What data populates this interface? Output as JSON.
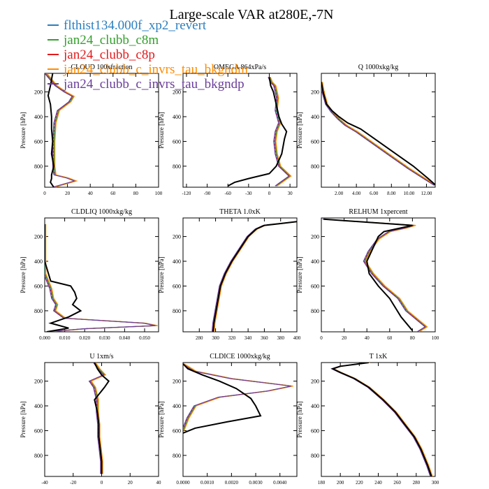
{
  "title": "Large-scale VAR at280E,-7N",
  "legend": {
    "placement": "top-left",
    "entries": [
      {
        "name": "flthist134.000f_xp2_revert",
        "color": "#2b7fbf"
      },
      {
        "name": "jan24_clubb_c8m",
        "color": "#33a02c"
      },
      {
        "name": "jan24_clubb_c8p",
        "color": "#e31a1c"
      },
      {
        "name": "jan24_clubb_c_invrs_tau_bkgndm",
        "color": "#ff8c00"
      },
      {
        "name": "jan24_clubb_c_invrs_tau_bkgndp",
        "color": "#6a3d9a"
      }
    ]
  },
  "reference_color": "#000000",
  "chart_data": [
    {
      "type": "line",
      "title": "CLOUD  100xfraction",
      "ylabel": "Pressure [hPa]",
      "xlim": [
        0,
        100
      ],
      "ylim": [
        970,
        50
      ],
      "y_inverted": true,
      "xticks": [
        "0",
        "20",
        "40",
        "60",
        "80",
        "100"
      ],
      "xtick_values": [
        0,
        20,
        40,
        60,
        80,
        100
      ],
      "yticks": [
        "200",
        "400",
        "600",
        "800"
      ],
      "ytick_values": [
        200,
        400,
        600,
        800
      ],
      "reference": {
        "x": [
          7,
          5,
          3,
          5,
          6,
          6,
          7,
          6,
          8,
          6,
          6,
          5,
          8
        ],
        "y": [
          50,
          150,
          230,
          300,
          400,
          500,
          600,
          700,
          800,
          870,
          900,
          930,
          970
        ]
      },
      "models": {
        "x": [
          1,
          10,
          18,
          25,
          22,
          12,
          9,
          8,
          8,
          9,
          20,
          27,
          8
        ],
        "y": [
          50,
          150,
          200,
          235,
          280,
          350,
          450,
          600,
          800,
          870,
          895,
          920,
          970
        ]
      }
    },
    {
      "type": "line",
      "title": "OMEGA  864xPa/s",
      "ylabel": "Pressure [hPa]",
      "xlim": [
        -125,
        40
      ],
      "ylim": [
        970,
        50
      ],
      "y_inverted": true,
      "xticks": [
        "-120",
        "-90",
        "-60",
        "-30",
        "0",
        "30"
      ],
      "xtick_values": [
        -120,
        -90,
        -60,
        -30,
        0,
        30
      ],
      "yticks": [
        "200",
        "400",
        "600",
        "800"
      ],
      "ytick_values": [
        200,
        400,
        600,
        800
      ],
      "reference": {
        "x": [
          0,
          2,
          6,
          10,
          14,
          18,
          25,
          22,
          18,
          10,
          0,
          -30,
          -50,
          -60
        ],
        "y": [
          80,
          150,
          200,
          300,
          400,
          460,
          520,
          580,
          700,
          800,
          860,
          900,
          930,
          960
        ]
      },
      "models": {
        "x": [
          0,
          3,
          8,
          12,
          10,
          15,
          10,
          8,
          10,
          15,
          30,
          20,
          10
        ],
        "y": [
          80,
          120,
          150,
          250,
          350,
          450,
          520,
          600,
          700,
          800,
          880,
          920,
          960
        ]
      }
    },
    {
      "type": "line",
      "title": "Q  1000xkg/kg",
      "ylabel": "Pressure [hPa]",
      "xlim": [
        0,
        13
      ],
      "ylim": [
        970,
        50
      ],
      "y_inverted": true,
      "xticks": [
        "2.00",
        "4.00",
        "6.00",
        "8.00",
        "10.00",
        "12.00"
      ],
      "xtick_values": [
        2,
        4,
        6,
        8,
        10,
        12
      ],
      "yticks": [
        "200",
        "400",
        "600",
        "800"
      ],
      "ytick_values": [
        200,
        400,
        600,
        800
      ],
      "reference": {
        "x": [
          0,
          0.2,
          0.6,
          1.2,
          2.0,
          3.0,
          4.5,
          6.5,
          8.5,
          10.5,
          12.2,
          13.0
        ],
        "y": [
          120,
          200,
          300,
          350,
          400,
          450,
          500,
          600,
          700,
          800,
          900,
          950
        ]
      },
      "models": {
        "x": [
          0,
          0.2,
          0.6,
          1.2,
          2.0,
          2.8,
          4.0,
          6.0,
          8.0,
          10.0,
          12.0,
          13.0
        ],
        "y": [
          120,
          200,
          300,
          360,
          420,
          470,
          520,
          620,
          720,
          820,
          910,
          955
        ]
      }
    },
    {
      "type": "line",
      "title": "CLDLIQ  1000xkg/kg",
      "ylabel": "Pressure [hPa]",
      "xlim": [
        0,
        0.057
      ],
      "ylim": [
        970,
        50
      ],
      "y_inverted": true,
      "xticks": [
        "0.000",
        "0.010",
        "0.020",
        "0.030",
        "0.040",
        "0.050"
      ],
      "xtick_values": [
        0,
        0.01,
        0.02,
        0.03,
        0.04,
        0.05
      ],
      "yticks": [
        "200",
        "400",
        "600",
        "800"
      ],
      "ytick_values": [
        200,
        400,
        600,
        800
      ],
      "reference": {
        "x": [
          0,
          0,
          0.003,
          0.013,
          0.015,
          0.016,
          0.014,
          0.018,
          0.012,
          0.003,
          0.012,
          0.001
        ],
        "y": [
          100,
          400,
          560,
          600,
          650,
          700,
          750,
          800,
          850,
          900,
          940,
          970
        ]
      },
      "models": {
        "x": [
          0,
          0,
          0.002,
          0.003,
          0.004,
          0.006,
          0.005,
          0.01,
          0.05,
          0.056,
          0.02,
          0.002
        ],
        "y": [
          100,
          500,
          580,
          620,
          700,
          750,
          800,
          860,
          900,
          920,
          945,
          970
        ]
      }
    },
    {
      "type": "line",
      "title": "THETA  1.0xK",
      "ylabel": "Pressure [hPa]",
      "xlim": [
        260,
        400
      ],
      "ylim": [
        970,
        50
      ],
      "y_inverted": true,
      "xticks": [
        "280",
        "300",
        "320",
        "340",
        "360",
        "380",
        "400"
      ],
      "xtick_values": [
        280,
        300,
        320,
        340,
        360,
        380,
        400
      ],
      "yticks": [
        "200",
        "400",
        "600",
        "800"
      ],
      "ytick_values": [
        200,
        400,
        600,
        800
      ],
      "reference": {
        "x": [
          400,
          380,
          360,
          350,
          340,
          330,
          320,
          312,
          306,
          302,
          298,
          297
        ],
        "y": [
          80,
          95,
          110,
          140,
          200,
          300,
          400,
          500,
          600,
          750,
          900,
          970
        ]
      },
      "models": {
        "x": [
          400,
          380,
          360,
          350,
          340,
          330,
          320,
          312,
          306,
          302,
          298,
          297
        ],
        "y": [
          80,
          95,
          110,
          140,
          200,
          300,
          400,
          500,
          600,
          750,
          900,
          970
        ]
      }
    },
    {
      "type": "line",
      "title": "RELHUM  1xpercent",
      "ylabel": "Pressure [hPa]",
      "xlim": [
        0,
        100
      ],
      "ylim": [
        970,
        50
      ],
      "y_inverted": true,
      "xticks": [
        "0",
        "20",
        "40",
        "60",
        "80",
        "100"
      ],
      "xtick_values": [
        0,
        20,
        40,
        60,
        80,
        100
      ],
      "yticks": [
        "200",
        "400",
        "600",
        "800"
      ],
      "ytick_values": [
        200,
        400,
        600,
        800
      ],
      "reference": {
        "x": [
          2,
          80,
          70,
          55,
          50,
          45,
          40,
          42,
          50,
          60,
          70,
          80
        ],
        "y": [
          60,
          110,
          130,
          160,
          200,
          300,
          400,
          500,
          600,
          700,
          850,
          960
        ]
      },
      "models": {
        "x": [
          2,
          82,
          75,
          60,
          50,
          42,
          38,
          45,
          55,
          68,
          75,
          92,
          85
        ],
        "y": [
          60,
          110,
          130,
          160,
          220,
          320,
          400,
          500,
          600,
          700,
          800,
          930,
          970
        ]
      }
    },
    {
      "type": "line",
      "title": "U  1xm/s",
      "ylabel": "Pressure [hPa]",
      "xlim": [
        -40,
        40
      ],
      "ylim": [
        970,
        50
      ],
      "y_inverted": true,
      "xticks": [
        "-40",
        "-20",
        "0",
        "20",
        "40"
      ],
      "xtick_values": [
        -40,
        -20,
        0,
        20,
        40
      ],
      "yticks": [
        "200",
        "400",
        "600",
        "800"
      ],
      "ytick_values": [
        200,
        400,
        600,
        800
      ],
      "reference": {
        "x": [
          -5,
          -3,
          0,
          5,
          2,
          -5,
          -3,
          -2,
          -2,
          -1,
          0,
          0
        ],
        "y": [
          50,
          100,
          150,
          200,
          250,
          350,
          450,
          550,
          650,
          750,
          850,
          950
        ]
      },
      "models": {
        "x": [
          -5,
          -2,
          2,
          -8,
          -5,
          -3,
          -3,
          -2,
          -2,
          -1,
          0,
          0
        ],
        "y": [
          50,
          100,
          150,
          200,
          250,
          350,
          450,
          550,
          650,
          750,
          850,
          950
        ]
      }
    },
    {
      "type": "line",
      "title": "CLDICE  1000xkg/kg",
      "ylabel": "Pressure [hPa]",
      "xlim": [
        0,
        0.0047
      ],
      "ylim": [
        970,
        50
      ],
      "y_inverted": true,
      "xticks": [
        "0.0000",
        "0.0010",
        "0.0020",
        "0.0030",
        "0.0040"
      ],
      "xtick_values": [
        0,
        0.001,
        0.002,
        0.003,
        0.004
      ],
      "yticks": [
        "200",
        "400",
        "600",
        "800"
      ],
      "ytick_values": [
        200,
        400,
        600,
        800
      ],
      "reference": {
        "x": [
          0,
          0.0002,
          0.0008,
          0.0015,
          0.0022,
          0.0028,
          0.003,
          0.0032,
          0.0018,
          0.0005,
          0
        ],
        "y": [
          60,
          100,
          150,
          200,
          260,
          340,
          400,
          480,
          530,
          580,
          620
        ]
      },
      "models": {
        "x": [
          0,
          0.0005,
          0.002,
          0.0045,
          0.0035,
          0.0015,
          0.0005,
          0.0002,
          0
        ],
        "y": [
          60,
          120,
          180,
          240,
          280,
          330,
          400,
          500,
          600
        ]
      }
    },
    {
      "type": "line",
      "title": "T  1xK",
      "ylabel": "Pressure [hPa]",
      "xlim": [
        180,
        300
      ],
      "ylim": [
        970,
        50
      ],
      "y_inverted": true,
      "xticks": [
        "180",
        "200",
        "220",
        "240",
        "260",
        "280",
        "300"
      ],
      "xtick_values": [
        180,
        200,
        220,
        240,
        260,
        280,
        300
      ],
      "yticks": [
        "200",
        "400",
        "600",
        "800"
      ],
      "ytick_values": [
        200,
        400,
        600,
        800
      ],
      "reference": {
        "x": [
          230,
          200,
          192,
          200,
          215,
          230,
          245,
          258,
          268,
          278,
          285,
          292,
          296
        ],
        "y": [
          50,
          80,
          100,
          130,
          180,
          250,
          350,
          450,
          550,
          650,
          750,
          880,
          970
        ]
      },
      "models": {
        "x": [
          230,
          200,
          192,
          200,
          215,
          230,
          245,
          258,
          268,
          278,
          285,
          292,
          296
        ],
        "y": [
          50,
          80,
          100,
          130,
          180,
          250,
          350,
          450,
          550,
          650,
          750,
          880,
          970
        ]
      }
    }
  ]
}
